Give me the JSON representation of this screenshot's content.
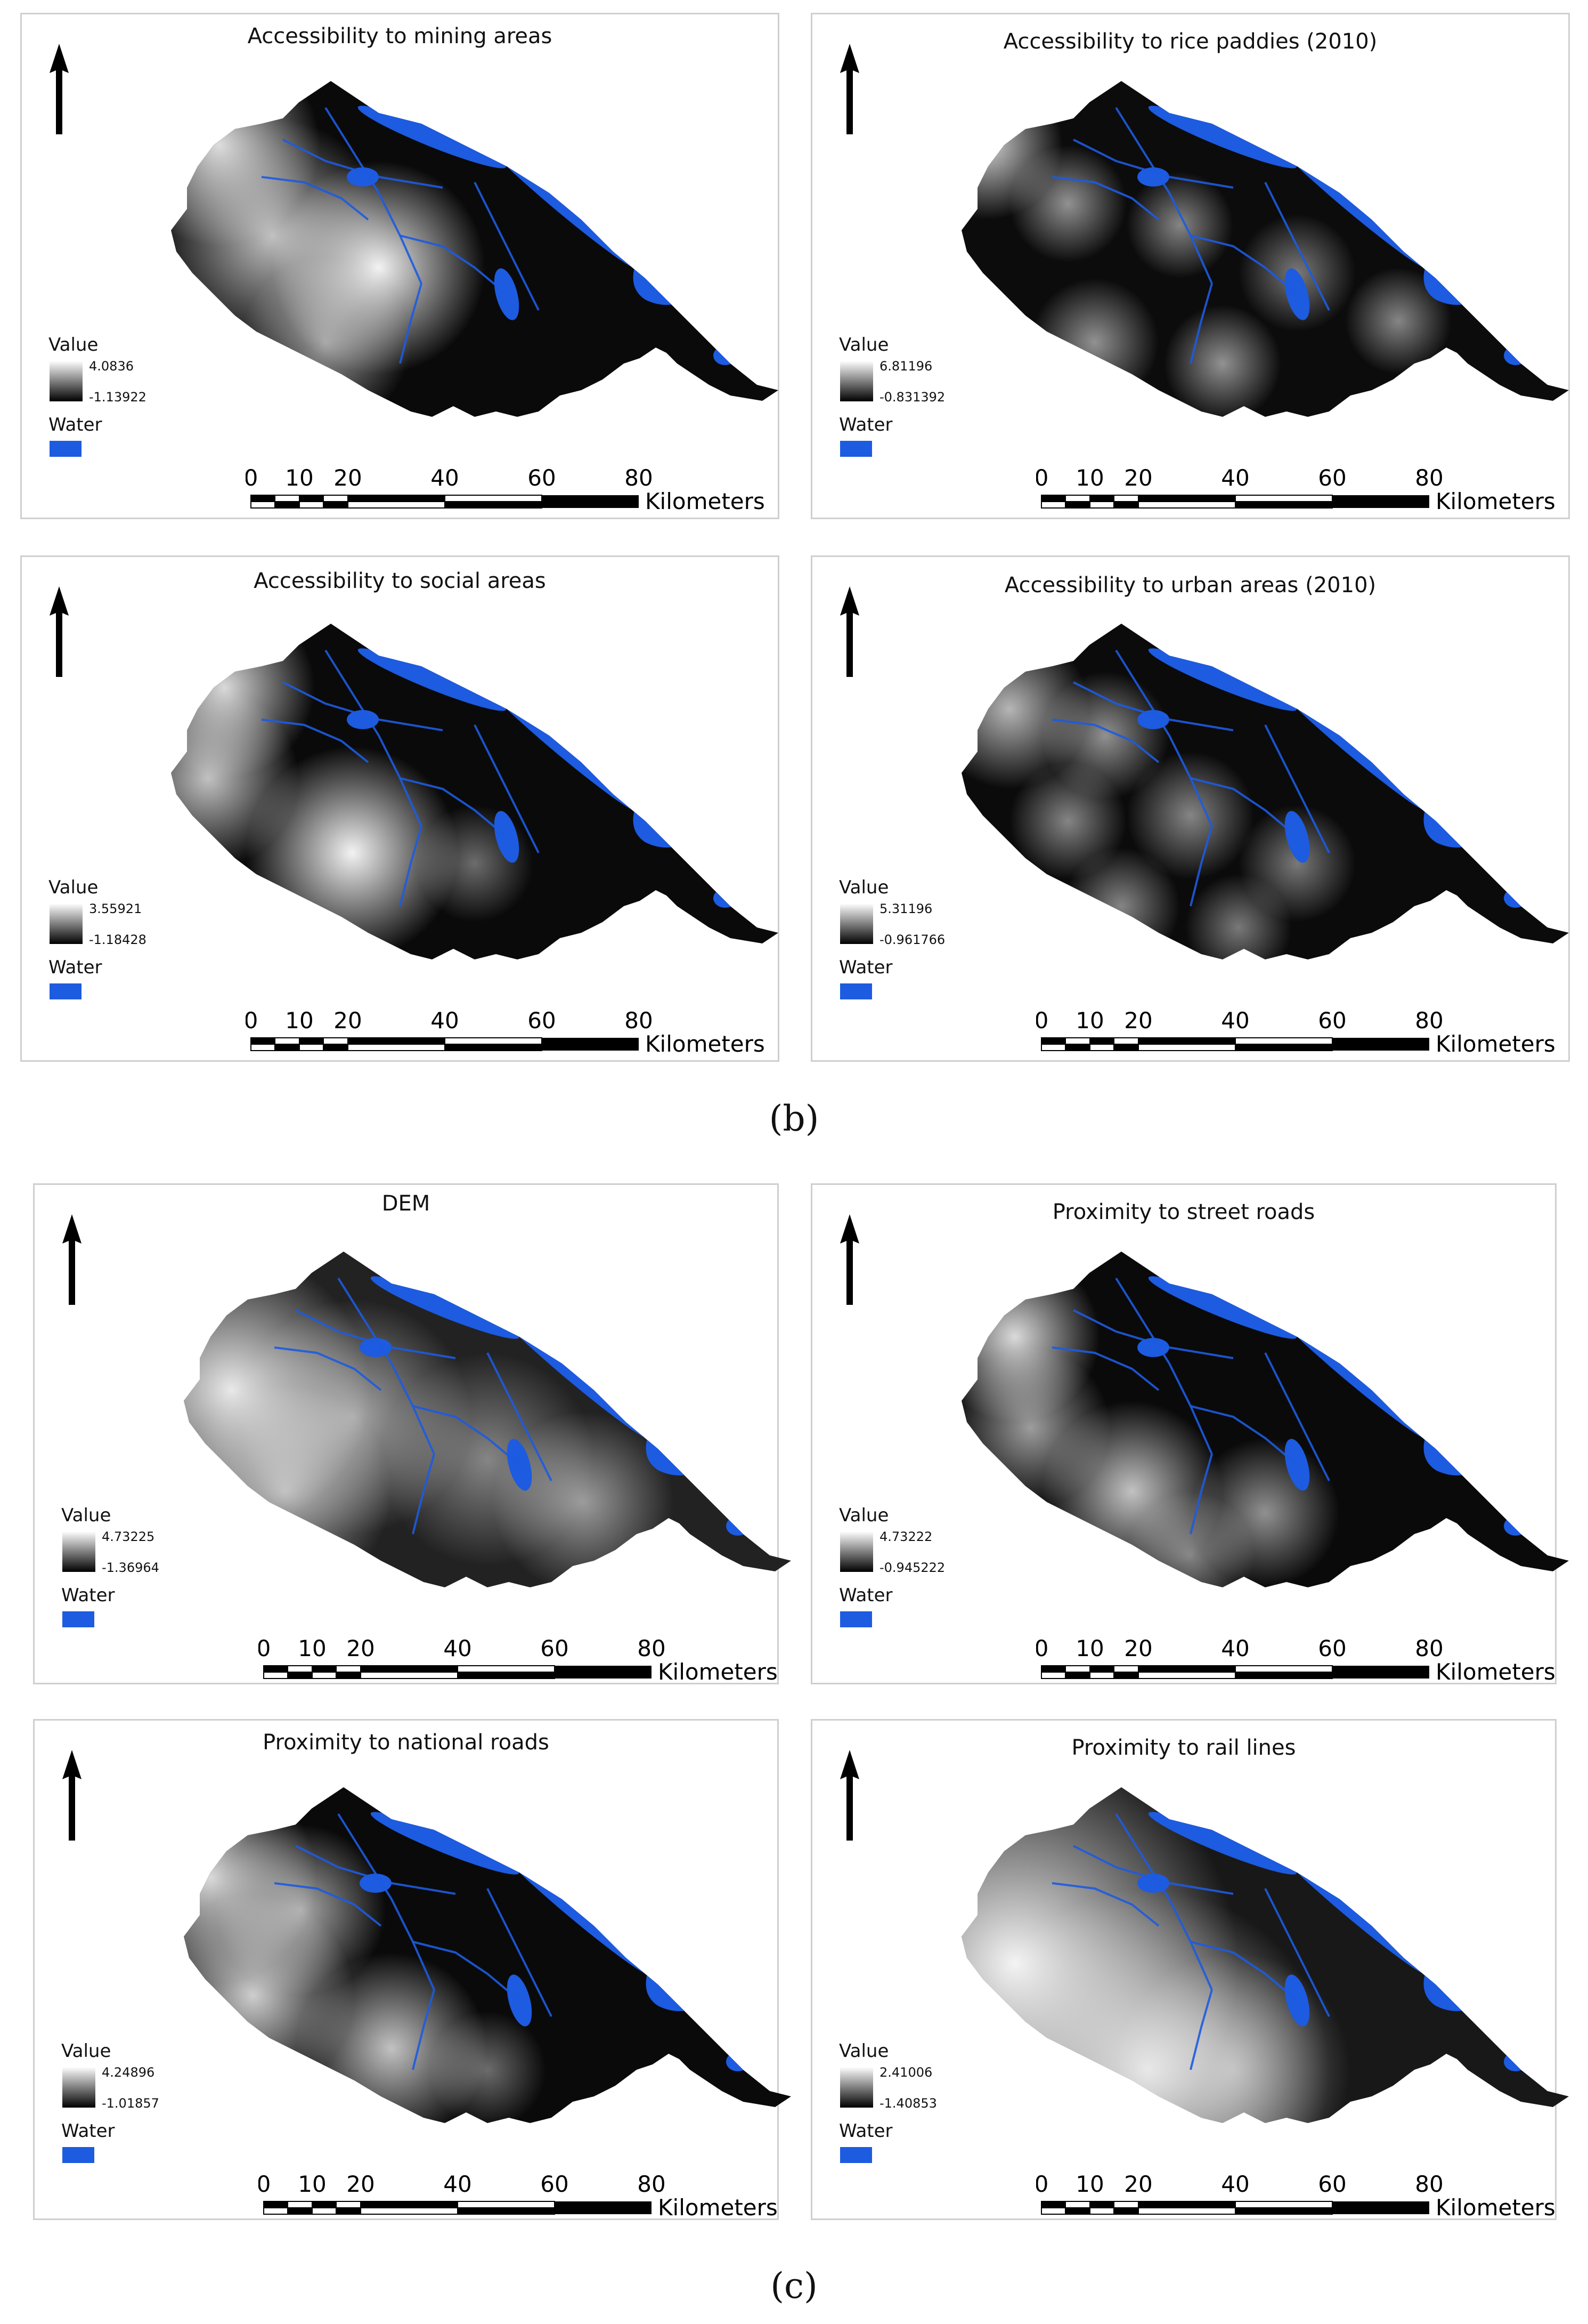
{
  "colors": {
    "water": "#1d5be0",
    "ramp_high": "#ffffff",
    "ramp_low": "#000000"
  },
  "icons": {
    "north_arrow": "north-arrow-icon"
  },
  "legend": {
    "value_label": "Value",
    "water_label": "Water"
  },
  "scale": {
    "ticks": [
      "0",
      "10",
      "20",
      "40",
      "60",
      "80"
    ],
    "unit": "Kilometers"
  },
  "captions": {
    "b": "(b)",
    "c": "(c)"
  },
  "panels": [
    {
      "title": "Accessibility to mining areas",
      "max": "4.0836",
      "min": "-1.13922",
      "pattern": "mining"
    },
    {
      "title": "Accessibility to rice paddies (2010)",
      "max": "6.81196",
      "min": "-0.831392",
      "pattern": "rice"
    },
    {
      "title": "Accessibility to social areas",
      "max": "3.55921",
      "min": "-1.18428",
      "pattern": "social"
    },
    {
      "title": "Accessibility to urban areas (2010)",
      "max": "5.31196",
      "min": "-0.961766",
      "pattern": "urban"
    },
    {
      "title": "DEM",
      "max": "4.73225",
      "min": "-1.36964",
      "pattern": "dem"
    },
    {
      "title": "Proximity to street roads",
      "max": "4.73222",
      "min": "-0.945222",
      "pattern": "street"
    },
    {
      "title": "Proximity to national roads",
      "max": "4.24896",
      "min": "-1.01857",
      "pattern": "national"
    },
    {
      "title": "Proximity to rail lines",
      "max": "2.41006",
      "min": "-1.40853",
      "pattern": "rail"
    }
  ]
}
